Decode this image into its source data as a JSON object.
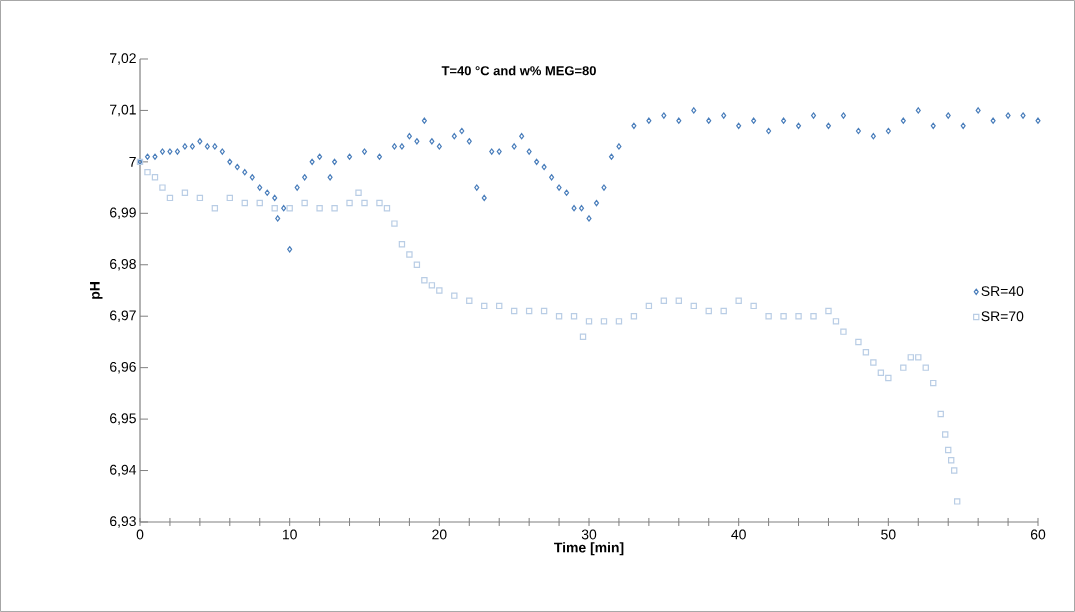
{
  "chart_data": {
    "type": "scatter",
    "title": "T=40 °C and w% MEG=80",
    "xlabel": "Time [min]",
    "ylabel": "pH",
    "xlim": [
      0,
      60
    ],
    "ylim": [
      6.93,
      7.02
    ],
    "xticks": [
      0,
      {
        "value": 2,
        "label": null
      },
      {
        "value": 4,
        "label": null
      },
      {
        "value": 6,
        "label": null
      },
      {
        "value": 8,
        "label": null
      },
      10,
      {
        "value": 12,
        "label": null
      },
      {
        "value": 14,
        "label": null
      },
      {
        "value": 16,
        "label": null
      },
      {
        "value": 18,
        "label": null
      },
      20,
      {
        "value": 22,
        "label": null
      },
      {
        "value": 24,
        "label": null
      },
      {
        "value": 26,
        "label": null
      },
      {
        "value": 28,
        "label": null
      },
      30,
      {
        "value": 32,
        "label": null
      },
      {
        "value": 34,
        "label": null
      },
      {
        "value": 36,
        "label": null
      },
      {
        "value": 38,
        "label": null
      },
      40,
      {
        "value": 42,
        "label": null
      },
      {
        "value": 44,
        "label": null
      },
      {
        "value": 46,
        "label": null
      },
      {
        "value": 48,
        "label": null
      },
      50,
      {
        "value": 52,
        "label": null
      },
      {
        "value": 54,
        "label": null
      },
      {
        "value": 56,
        "label": null
      },
      {
        "value": 58,
        "label": null
      },
      60
    ],
    "yticks": [
      {
        "value": 6.93,
        "label": "6,93"
      },
      {
        "value": 6.94,
        "label": "6,94"
      },
      {
        "value": 6.95,
        "label": "6,95"
      },
      {
        "value": 6.96,
        "label": "6,96"
      },
      {
        "value": 6.97,
        "label": "6,97"
      },
      {
        "value": 6.98,
        "label": "6,98"
      },
      {
        "value": 6.99,
        "label": "6,99"
      },
      {
        "value": 7.0,
        "label": "7"
      },
      {
        "value": 7.01,
        "label": "7,01"
      },
      {
        "value": 7.02,
        "label": "7,02"
      }
    ],
    "grid": false,
    "legend": "right",
    "series": [
      {
        "name": "SR=40",
        "color": "#4a7ebb",
        "marker": "diamond",
        "x": [
          0,
          0.5,
          1,
          1.5,
          2,
          2.5,
          3,
          3.5,
          4,
          4.5,
          5,
          5.5,
          6,
          6.5,
          7,
          7.5,
          8,
          8.5,
          9,
          9.2,
          9.6,
          10,
          10.5,
          11,
          11.5,
          12,
          12.7,
          13,
          14,
          15,
          16,
          17,
          17.5,
          18,
          18.5,
          19,
          19.5,
          20,
          21,
          21.5,
          22,
          22.5,
          23,
          23.5,
          24,
          25,
          25.5,
          26,
          26.5,
          27,
          27.5,
          28,
          28.5,
          29,
          29.5,
          30,
          30.5,
          31,
          31.5,
          32,
          33,
          34,
          35,
          36,
          37,
          38,
          39,
          40,
          41,
          42,
          43,
          44,
          45,
          46,
          47,
          48,
          49,
          50,
          51,
          52,
          53,
          54,
          55,
          56,
          57,
          58,
          59,
          60
        ],
        "values": [
          7.0,
          7.001,
          7.001,
          7.002,
          7.002,
          7.002,
          7.003,
          7.003,
          7.004,
          7.003,
          7.003,
          7.002,
          7.0,
          6.999,
          6.998,
          6.997,
          6.995,
          6.994,
          6.993,
          6.989,
          6.991,
          6.983,
          6.995,
          6.997,
          7.0,
          7.001,
          6.997,
          7.0,
          7.001,
          7.002,
          7.001,
          7.003,
          7.003,
          7.005,
          7.004,
          7.008,
          7.004,
          7.003,
          7.005,
          7.006,
          7.004,
          6.995,
          6.993,
          7.002,
          7.002,
          7.003,
          7.005,
          7.002,
          7.0,
          6.999,
          6.997,
          6.995,
          6.994,
          6.991,
          6.991,
          6.989,
          6.992,
          6.995,
          7.001,
          7.003,
          7.007,
          7.008,
          7.009,
          7.008,
          7.01,
          7.008,
          7.009,
          7.007,
          7.008,
          7.006,
          7.008,
          7.007,
          7.009,
          7.007,
          7.009,
          7.006,
          7.005,
          7.006,
          7.008,
          7.01,
          7.007,
          7.009,
          7.007,
          7.01,
          7.008,
          7.009,
          7.009,
          7.008
        ]
      },
      {
        "name": "SR=70",
        "color": "#b9cde5",
        "marker": "square",
        "x": [
          0,
          0.5,
          1,
          1.5,
          2,
          3,
          4,
          5,
          6,
          7,
          8,
          9,
          10,
          11,
          12,
          13,
          14,
          14.6,
          15,
          16,
          16.5,
          17,
          17.5,
          18,
          18.5,
          19,
          19.5,
          20,
          21,
          22,
          23,
          24,
          25,
          26,
          27,
          28,
          29,
          29.6,
          30,
          31,
          32,
          33,
          34,
          35,
          36,
          37,
          38,
          39,
          40,
          41,
          42,
          43,
          44,
          45,
          46,
          46.5,
          47,
          48,
          48.5,
          49,
          49.5,
          50,
          51,
          51.5,
          52,
          52.5,
          53,
          53.5,
          53.8,
          54,
          54.2,
          54.4,
          54.6
        ],
        "values": [
          7.0,
          6.998,
          6.997,
          6.995,
          6.993,
          6.994,
          6.993,
          6.991,
          6.993,
          6.992,
          6.992,
          6.991,
          6.991,
          6.992,
          6.991,
          6.991,
          6.992,
          6.994,
          6.992,
          6.992,
          6.991,
          6.988,
          6.984,
          6.982,
          6.98,
          6.977,
          6.976,
          6.975,
          6.974,
          6.973,
          6.972,
          6.972,
          6.971,
          6.971,
          6.971,
          6.97,
          6.97,
          6.966,
          6.969,
          6.969,
          6.969,
          6.97,
          6.972,
          6.973,
          6.973,
          6.972,
          6.971,
          6.971,
          6.973,
          6.972,
          6.97,
          6.97,
          6.97,
          6.97,
          6.971,
          6.969,
          6.967,
          6.965,
          6.963,
          6.961,
          6.959,
          6.958,
          6.96,
          6.962,
          6.962,
          6.96,
          6.957,
          6.951,
          6.947,
          6.944,
          6.942,
          6.94,
          6.934
        ]
      }
    ]
  }
}
